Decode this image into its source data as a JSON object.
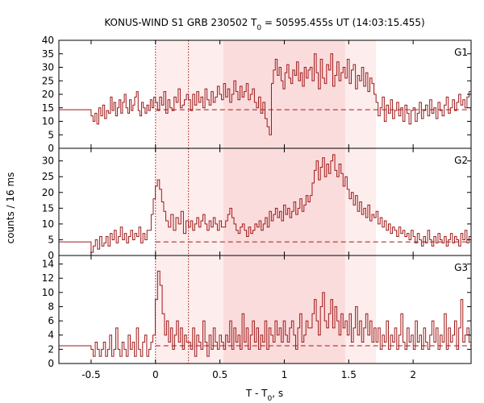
{
  "chart_data": {
    "type": "line",
    "title_parts": {
      "prefix": "KONUS-WIND S1 GRB 230502 T",
      "subscript": "0",
      "suffix": " = 50595.455s UT (14:03:15.455)"
    },
    "xlabel_parts": {
      "prefix": "T - T",
      "subscript": "0",
      "suffix": ", s"
    },
    "ylabel": "counts / 16 ms",
    "xlim": [
      -0.75,
      2.45
    ],
    "xticks": [
      {
        "value": -0.5,
        "label": "-0.5"
      },
      {
        "value": 0,
        "label": "0"
      },
      {
        "value": 0.5,
        "label": "0.5"
      },
      {
        "value": 1,
        "label": "1"
      },
      {
        "value": 1.5,
        "label": "1.5"
      },
      {
        "value": 2,
        "label": "2"
      }
    ],
    "colors": {
      "curve": "#a01818",
      "background": "#a01818",
      "markers": "#a01818",
      "shade_light": "#fdeded",
      "shade_dark": "#fbdcdd"
    },
    "markers": [
      0,
      0.256
    ],
    "shaded_regions": [
      {
        "start": 0,
        "end": 1.712,
        "level": "light"
      },
      {
        "start": 0.528,
        "end": 1.472,
        "level": "dark"
      }
    ],
    "panels": [
      {
        "name": "G1",
        "ylim": [
          0,
          40
        ],
        "yticks": [
          0,
          5,
          10,
          15,
          20,
          25,
          30,
          35,
          40
        ],
        "background_level": 14.3,
        "segments": [
          {
            "t0": -0.75,
            "t1": -0.5,
            "values": [
              14.3
            ]
          },
          {
            "t0": -0.5,
            "t1": -0.35,
            "values": [
              12,
              10,
              13,
              9,
              15,
              12,
              16,
              11,
              14,
              13
            ]
          },
          {
            "t0": -0.35,
            "t1": 0,
            "values": [
              19,
              14,
              17,
              12,
              15,
              18,
              13,
              17,
              20,
              15,
              13,
              18,
              14,
              16,
              19,
              21,
              14,
              12,
              17,
              15,
              13,
              16,
              14,
              18,
              15,
              19
            ]
          },
          {
            "t0": 0,
            "t1": 0.256,
            "values": [
              17,
              14,
              19,
              16,
              21,
              13,
              18,
              15,
              14,
              19,
              17,
              22,
              15,
              16,
              18,
              20
            ]
          },
          {
            "t0": 0.256,
            "t1": 0.528,
            "values": [
              18,
              14,
              20,
              16,
              21,
              17,
              19,
              15,
              22,
              18,
              16,
              21,
              17,
              19,
              23,
              20,
              18
            ]
          },
          {
            "t0": 0.528,
            "t1": 0.8,
            "values": [
              24,
              19,
              22,
              17,
              20,
              25,
              21,
              18,
              23,
              19,
              21,
              24,
              18,
              20,
              22,
              17,
              15
            ]
          },
          {
            "t0": 0.8,
            "t1": 0.9,
            "values": [
              19,
              13,
              17,
              11,
              8,
              5
            ]
          },
          {
            "t0": 0.9,
            "t1": 1.2,
            "values": [
              24,
              29,
              33,
              27,
              30,
              25,
              22,
              28,
              31,
              26,
              24,
              29,
              27,
              32,
              25,
              28,
              23,
              30,
              26,
              29
            ]
          },
          {
            "t0": 1.2,
            "t1": 1.472,
            "values": [
              30,
              25,
              35,
              28,
              22,
              33,
              26,
              24,
              31,
              29,
              35,
              23,
              27,
              32,
              25,
              28,
              30
            ]
          },
          {
            "t0": 1.472,
            "t1": 1.712,
            "values": [
              26,
              33,
              24,
              29,
              31,
              22,
              27,
              25,
              30,
              23,
              28,
              21,
              26,
              24,
              20
            ]
          },
          {
            "t0": 1.712,
            "t1": 2.0,
            "values": [
              17,
              12,
              15,
              19,
              10,
              16,
              13,
              18,
              11,
              14,
              17,
              12,
              15,
              10,
              16,
              13,
              9,
              14
            ]
          },
          {
            "t0": 2.0,
            "t1": 2.45,
            "values": [
              15,
              10,
              13,
              17,
              11,
              14,
              16,
              12,
              18,
              13,
              15,
              11,
              17,
              14,
              12,
              16,
              19,
              13,
              15,
              18,
              14,
              17,
              20,
              16,
              18,
              15,
              19,
              21
            ]
          }
        ]
      },
      {
        "name": "G2",
        "ylim": [
          0,
          34
        ],
        "yticks": [
          0,
          5,
          10,
          15,
          20,
          25,
          30
        ],
        "background_level": 4.3,
        "segments": [
          {
            "t0": -0.75,
            "t1": -0.5,
            "values": [
              4.3
            ]
          },
          {
            "t0": -0.5,
            "t1": -0.4,
            "values": [
              1,
              3,
              5,
              2,
              6,
              3
            ]
          },
          {
            "t0": -0.4,
            "t1": -0.05,
            "values": [
              4,
              6,
              3,
              7,
              5,
              8,
              4,
              6,
              9,
              5,
              7,
              4,
              6,
              8,
              5,
              7,
              6,
              9,
              4,
              7,
              5,
              8
            ]
          },
          {
            "t0": -0.05,
            "t1": 0.08,
            "values": [
              8,
              13,
              18,
              22,
              24,
              21,
              17,
              14
            ]
          },
          {
            "t0": 0.08,
            "t1": 0.256,
            "values": [
              11,
              9,
              13,
              8,
              12,
              10,
              14,
              7,
              11
            ]
          },
          {
            "t0": 0.256,
            "t1": 0.528,
            "values": [
              9,
              11,
              8,
              10,
              12,
              9,
              11,
              13,
              10,
              8,
              11,
              9,
              12,
              10,
              8,
              11,
              9
            ]
          },
          {
            "t0": 0.528,
            "t1": 0.82,
            "values": [
              9,
              11,
              13,
              15,
              12,
              10,
              8,
              7,
              9,
              10,
              8,
              6,
              9,
              7,
              8,
              10,
              9,
              11
            ]
          },
          {
            "t0": 0.82,
            "t1": 1.2,
            "values": [
              8,
              10,
              12,
              9,
              14,
              11,
              13,
              15,
              12,
              14,
              11,
              16,
              13,
              15,
              12,
              14,
              17,
              13,
              15,
              18,
              14,
              16,
              19,
              17
            ]
          },
          {
            "t0": 1.2,
            "t1": 1.472,
            "values": [
              19,
              23,
              27,
              30,
              24,
              28,
              31,
              25,
              29,
              26,
              30,
              32,
              27,
              25,
              29,
              26,
              22
            ]
          },
          {
            "t0": 1.472,
            "t1": 1.712,
            "values": [
              25,
              21,
              18,
              20,
              16,
              19,
              14,
              17,
              13,
              15,
              12,
              16,
              11,
              13,
              12
            ]
          },
          {
            "t0": 1.712,
            "t1": 2.0,
            "values": [
              14,
              10,
              12,
              9,
              11,
              8,
              10,
              7,
              9,
              8,
              6,
              9,
              7,
              8,
              6,
              7,
              5,
              8
            ]
          },
          {
            "t0": 2.0,
            "t1": 2.45,
            "values": [
              6,
              4,
              7,
              5,
              3,
              6,
              4,
              8,
              5,
              3,
              6,
              4,
              7,
              5,
              4,
              6,
              3,
              5,
              7,
              4,
              6,
              5,
              3,
              7,
              5,
              8,
              4,
              6
            ]
          }
        ]
      },
      {
        "name": "G3",
        "ylim": [
          0,
          15.2
        ],
        "yticks": [
          0,
          2,
          4,
          6,
          8,
          10,
          12,
          14
        ],
        "background_level": 2.5,
        "segments": [
          {
            "t0": -0.75,
            "t1": -0.5,
            "values": [
              2.5
            ]
          },
          {
            "t0": -0.5,
            "t1": -0.02,
            "values": [
              2,
              1,
              3,
              2,
              1,
              2,
              3,
              1,
              2,
              4,
              1,
              2,
              5,
              2,
              1,
              3,
              2,
              1,
              4,
              2,
              3,
              1,
              5,
              2,
              1,
              3,
              4,
              1,
              2,
              3
            ]
          },
          {
            "t0": -0.02,
            "t1": 0.07,
            "values": [
              4,
              9,
              13,
              11,
              7
            ]
          },
          {
            "t0": 0.07,
            "t1": 0.256,
            "values": [
              4,
              6,
              3,
              5,
              2,
              4,
              6,
              3,
              5,
              2,
              4,
              3
            ]
          },
          {
            "t0": 0.256,
            "t1": 0.528,
            "values": [
              3,
              2,
              5,
              1,
              4,
              3,
              2,
              6,
              3,
              1,
              4,
              2,
              5,
              3,
              2,
              4,
              3
            ]
          },
          {
            "t0": 0.528,
            "t1": 1.2,
            "values": [
              2,
              4,
              3,
              6,
              2,
              5,
              3,
              4,
              2,
              7,
              3,
              5,
              2,
              4,
              6,
              3,
              5,
              2,
              4,
              3,
              6,
              2,
              5,
              4,
              3,
              6,
              4,
              5,
              3,
              6,
              4,
              3,
              5,
              6,
              4,
              2,
              5,
              7,
              3,
              4,
              6,
              5
            ]
          },
          {
            "t0": 1.2,
            "t1": 1.472,
            "values": [
              5,
              7,
              9,
              6,
              4,
              8,
              10,
              6,
              5,
              7,
              9,
              5,
              8,
              6,
              4,
              7,
              5
            ]
          },
          {
            "t0": 1.472,
            "t1": 1.712,
            "values": [
              6,
              4,
              7,
              3,
              5,
              8,
              4,
              6,
              3,
              5,
              7,
              4,
              6,
              3,
              5
            ]
          },
          {
            "t0": 1.712,
            "t1": 2.45,
            "values": [
              3,
              5,
              2,
              4,
              3,
              6,
              2,
              4,
              3,
              5,
              2,
              4,
              7,
              3,
              2,
              5,
              3,
              4,
              2,
              6,
              3,
              4,
              2,
              5,
              3,
              2,
              4,
              6,
              3,
              5,
              2,
              4,
              3,
              7,
              2,
              5,
              3,
              4,
              6,
              2,
              5,
              9,
              3,
              4,
              5,
              3
            ]
          }
        ]
      }
    ]
  }
}
